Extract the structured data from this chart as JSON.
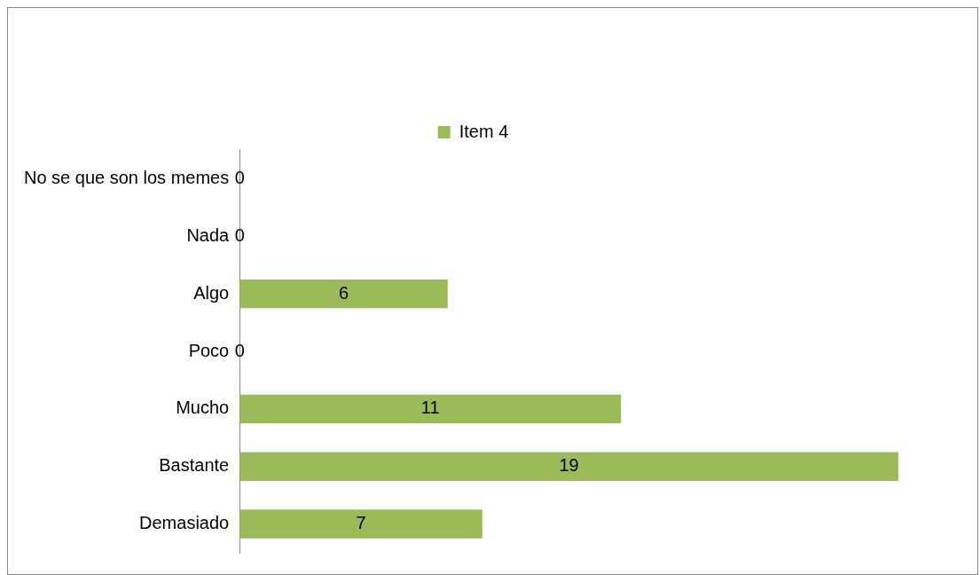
{
  "chart_data": {
    "type": "bar",
    "orientation": "horizontal",
    "categories": [
      "No se que son los memes",
      "Nada",
      "Algo",
      "Poco",
      "Mucho",
      "Bastante",
      "Demasiado"
    ],
    "series": [
      {
        "name": "Item 4",
        "color": "#9bbb59",
        "values": [
          0,
          0,
          6,
          0,
          11,
          19,
          7
        ]
      }
    ],
    "data_labels": true,
    "legend": "top"
  }
}
